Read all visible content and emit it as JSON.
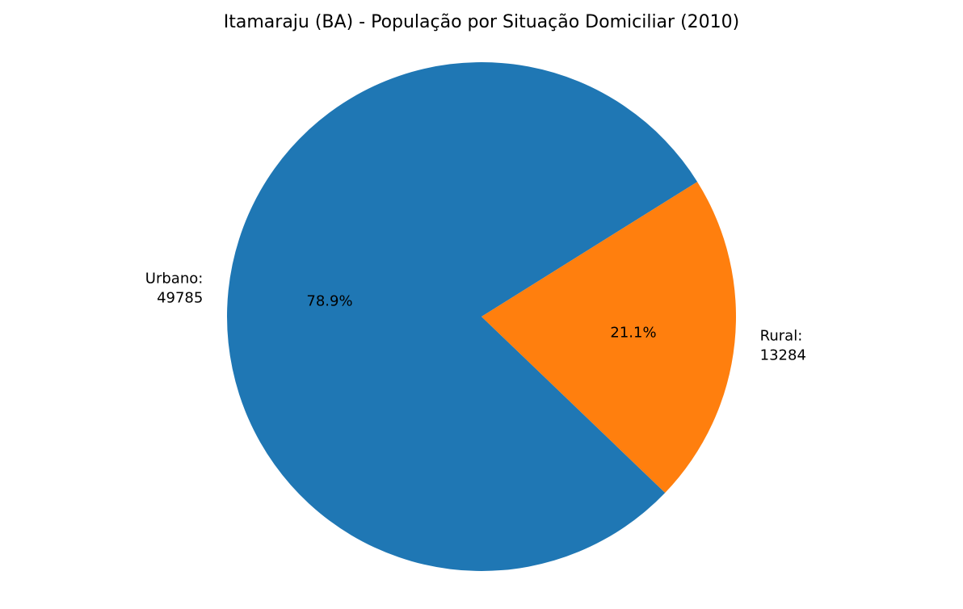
{
  "chart_data": {
    "type": "pie",
    "title": "Itamaraju (BA) - População por Situação Domiciliar (2010)",
    "slices": [
      {
        "label": "Urbano:",
        "value": 49785,
        "value_text": "49785",
        "percent_text": "78.9%",
        "color": "#1f77b4"
      },
      {
        "label": "Rural:",
        "value": 13284,
        "value_text": "13284",
        "percent_text": "21.1%",
        "color": "#ff7f0e"
      }
    ]
  }
}
